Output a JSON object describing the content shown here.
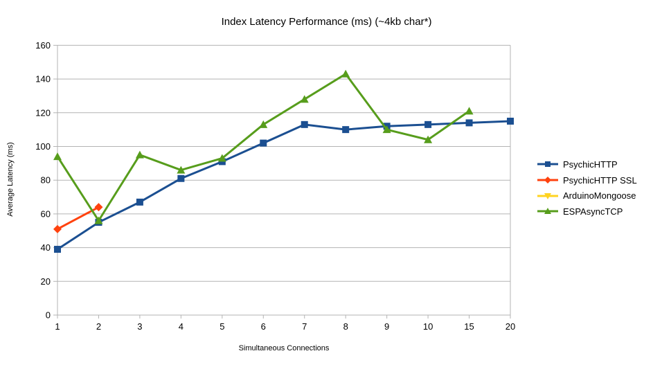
{
  "chart_data": {
    "type": "line",
    "title": "Index Latency Performance (ms) (~4kb char*)",
    "xlabel": "Simultaneous Connections",
    "ylabel": "Average Latency (ms)",
    "categories": [
      "1",
      "2",
      "3",
      "4",
      "5",
      "6",
      "7",
      "8",
      "9",
      "10",
      "15",
      "20"
    ],
    "yticks": [
      0,
      20,
      40,
      60,
      80,
      100,
      120,
      140,
      160
    ],
    "ylim": [
      0,
      160
    ],
    "grid": "horizontal-only",
    "grid_color": "#b3b3b3",
    "axis_color": "#b3b3b3",
    "text_color": "#000000",
    "background_color": "#ffffff",
    "legend_position": "right",
    "series": [
      {
        "name": "PsychicHTTP",
        "color": "#1b4f91",
        "marker": "square",
        "values": [
          39,
          55,
          67,
          81,
          91,
          102,
          113,
          110,
          112,
          113,
          114,
          115
        ]
      },
      {
        "name": "PsychicHTTP SSL",
        "color": "#ff420e",
        "marker": "diamond",
        "values": [
          51,
          64,
          null,
          null,
          null,
          null,
          null,
          null,
          null,
          null,
          null,
          null
        ]
      },
      {
        "name": "ArduinoMongoose",
        "color": "#ffd320",
        "marker": "triangle-down",
        "values": [
          null,
          null,
          null,
          null,
          null,
          null,
          null,
          null,
          null,
          null,
          null,
          null
        ]
      },
      {
        "name": "ESPAsyncTCP",
        "color": "#579d1c",
        "marker": "triangle-up",
        "values": [
          94,
          56,
          95,
          86,
          93,
          113,
          128,
          143,
          110,
          104,
          121,
          null
        ]
      }
    ]
  }
}
